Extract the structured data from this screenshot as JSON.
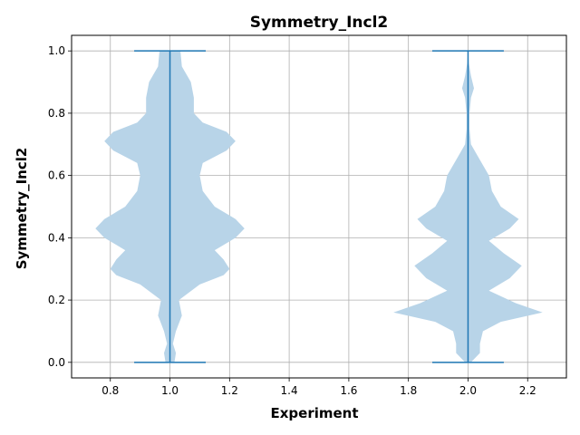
{
  "chart_data": {
    "type": "violin",
    "title": "Symmetry_Incl2",
    "xlabel": "Experiment",
    "ylabel": "Symmetry_Incl2",
    "xlim": [
      0.67,
      2.33
    ],
    "ylim": [
      -0.05,
      1.05
    ],
    "x_ticks": [
      "0.8",
      "1.0",
      "1.2",
      "1.4",
      "1.6",
      "1.8",
      "2.0",
      "2.2"
    ],
    "y_ticks": [
      "0.0",
      "0.2",
      "0.4",
      "0.6",
      "0.8",
      "1.0"
    ],
    "grid": true,
    "violin_color": "#b8d4e8",
    "line_color": "#1f77b4",
    "series": [
      {
        "position": 1.0,
        "min": 0.0,
        "max": 1.0,
        "profile": [
          [
            0.0,
            0.015
          ],
          [
            0.03,
            0.02
          ],
          [
            0.06,
            0.01
          ],
          [
            0.1,
            0.02
          ],
          [
            0.15,
            0.04
          ],
          [
            0.2,
            0.03
          ],
          [
            0.25,
            0.1
          ],
          [
            0.28,
            0.18
          ],
          [
            0.3,
            0.2
          ],
          [
            0.33,
            0.18
          ],
          [
            0.36,
            0.15
          ],
          [
            0.4,
            0.22
          ],
          [
            0.43,
            0.25
          ],
          [
            0.46,
            0.22
          ],
          [
            0.5,
            0.15
          ],
          [
            0.55,
            0.11
          ],
          [
            0.6,
            0.1
          ],
          [
            0.64,
            0.11
          ],
          [
            0.68,
            0.19
          ],
          [
            0.71,
            0.22
          ],
          [
            0.74,
            0.19
          ],
          [
            0.77,
            0.11
          ],
          [
            0.8,
            0.08
          ],
          [
            0.85,
            0.08
          ],
          [
            0.9,
            0.07
          ],
          [
            0.95,
            0.04
          ],
          [
            1.0,
            0.035
          ]
        ]
      },
      {
        "position": 2.0,
        "min": 0.0,
        "max": 1.0,
        "profile": [
          [
            0.0,
            0.01
          ],
          [
            0.03,
            0.04
          ],
          [
            0.06,
            0.04
          ],
          [
            0.1,
            0.05
          ],
          [
            0.13,
            0.11
          ],
          [
            0.16,
            0.25
          ],
          [
            0.19,
            0.16
          ],
          [
            0.23,
            0.07
          ],
          [
            0.27,
            0.14
          ],
          [
            0.31,
            0.18
          ],
          [
            0.35,
            0.12
          ],
          [
            0.39,
            0.07
          ],
          [
            0.43,
            0.14
          ],
          [
            0.46,
            0.17
          ],
          [
            0.5,
            0.11
          ],
          [
            0.55,
            0.08
          ],
          [
            0.6,
            0.07
          ],
          [
            0.65,
            0.04
          ],
          [
            0.7,
            0.01
          ],
          [
            0.75,
            0.005
          ],
          [
            0.8,
            0.005
          ],
          [
            0.85,
            0.01
          ],
          [
            0.88,
            0.02
          ],
          [
            0.92,
            0.01
          ],
          [
            0.96,
            0.003
          ],
          [
            1.0,
            0.0
          ]
        ]
      }
    ],
    "cap_half_width": 0.12
  }
}
